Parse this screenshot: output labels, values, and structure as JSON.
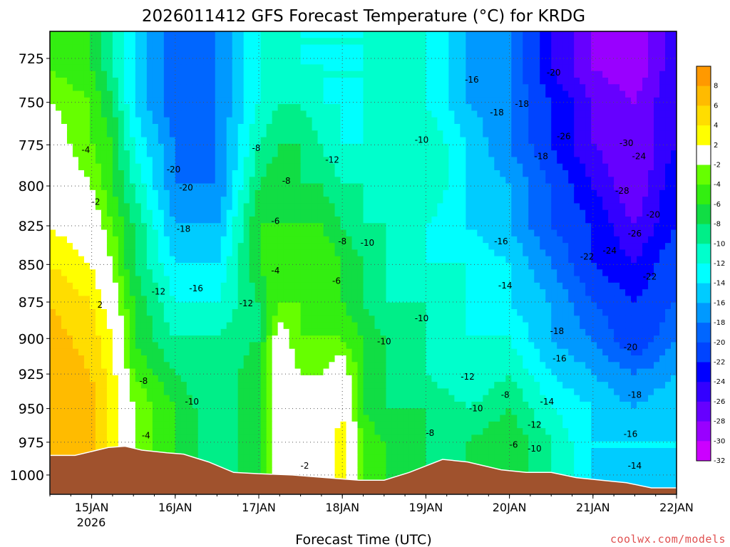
{
  "chart_data": {
    "type": "heatmap",
    "title": "2026011412 GFS Forecast Temperature (°C) for KRDG",
    "xlabel": "Forecast Time (UTC)",
    "ylabel": "",
    "x_ticks": [
      "15JAN",
      "16JAN",
      "17JAN",
      "18JAN",
      "19JAN",
      "20JAN",
      "21JAN",
      "22JAN"
    ],
    "x_year_label": "2026",
    "x_range_days": [
      14.5,
      22.0
    ],
    "y_ticks": [
      725,
      750,
      775,
      800,
      825,
      850,
      875,
      900,
      925,
      950,
      975,
      1000
    ],
    "y_range_hpa": [
      1015,
      710
    ],
    "y_scale": "log",
    "colorbar_levels": [
      8,
      6,
      4,
      2,
      -2,
      -4,
      -6,
      -8,
      -10,
      -12,
      -14,
      -16,
      -18,
      -20,
      -22,
      -24,
      -26,
      -28,
      -30,
      -32
    ],
    "colorbar_colors": [
      "#ff9900",
      "#ffbb00",
      "#ffdd00",
      "#ffff00",
      "#ffffff",
      "#66ff00",
      "#33ee11",
      "#11dd44",
      "#00ee88",
      "#00ffcc",
      "#00ffff",
      "#00ccff",
      "#0099ff",
      "#0066ff",
      "#0044ff",
      "#0000ff",
      "#3300ff",
      "#6600ff",
      "#9900ff",
      "#cc00ff"
    ],
    "terrain_color": "#a0522d",
    "surface_pressure": [
      [
        14.5,
        985
      ],
      [
        14.8,
        985
      ],
      [
        15.0,
        982
      ],
      [
        15.2,
        979
      ],
      [
        15.4,
        978
      ],
      [
        15.6,
        981
      ],
      [
        15.9,
        983
      ],
      [
        16.1,
        984
      ],
      [
        16.4,
        990
      ],
      [
        16.7,
        998
      ],
      [
        17.0,
        999
      ],
      [
        17.4,
        1000
      ],
      [
        17.8,
        1002
      ],
      [
        18.2,
        1004
      ],
      [
        18.5,
        1004
      ],
      [
        18.8,
        998
      ],
      [
        19.2,
        988
      ],
      [
        19.5,
        990
      ],
      [
        19.9,
        996
      ],
      [
        20.2,
        998
      ],
      [
        20.5,
        998
      ],
      [
        20.8,
        1002
      ],
      [
        21.1,
        1004
      ],
      [
        21.4,
        1006
      ],
      [
        21.7,
        1010
      ],
      [
        22.0,
        1010
      ]
    ],
    "temperature_field": {
      "pressures": [
        710,
        730,
        750,
        775,
        800,
        825,
        850,
        875,
        900,
        925,
        950,
        975,
        1000,
        1015
      ],
      "times": [
        14.5,
        15.0,
        15.25,
        15.5,
        16.0,
        16.5,
        17.0,
        17.25,
        17.5,
        17.75,
        18.0,
        18.25,
        18.5,
        19.0,
        19.5,
        20.0,
        20.5,
        21.0,
        21.5,
        22.0
      ],
      "values": [
        [
          -4,
          -6,
          -10,
          -14,
          -20,
          -18,
          -12,
          -10,
          -12,
          -12,
          -12,
          -12,
          -10,
          -12,
          -16,
          -18,
          -24,
          -28,
          -30,
          -24
        ],
        [
          -4,
          -6,
          -10,
          -14,
          -20,
          -18,
          -12,
          -10,
          -12,
          -12,
          -12,
          -12,
          -10,
          -12,
          -16,
          -18,
          -24,
          -28,
          -30,
          -24
        ],
        [
          -2,
          -4,
          -8,
          -14,
          -20,
          -18,
          -12,
          -10,
          -10,
          -12,
          -12,
          -12,
          -12,
          -12,
          -16,
          -18,
          -22,
          -26,
          -28,
          -24
        ],
        [
          0,
          -4,
          -6,
          -12,
          -18,
          -18,
          -10,
          -8,
          -8,
          -10,
          -12,
          -12,
          -10,
          -10,
          -14,
          -18,
          -22,
          -26,
          -28,
          -24
        ],
        [
          1,
          -2,
          -6,
          -10,
          -18,
          -18,
          -8,
          -6,
          -8,
          -8,
          -10,
          -10,
          -10,
          -10,
          -14,
          -16,
          -20,
          -24,
          -28,
          -22
        ],
        [
          2,
          0,
          -4,
          -8,
          -16,
          -16,
          -6,
          -6,
          -6,
          -6,
          -8,
          -10,
          -10,
          -12,
          -14,
          -16,
          -20,
          -22,
          -26,
          -22
        ],
        [
          4,
          2,
          -2,
          -8,
          -14,
          -14,
          -6,
          -4,
          -4,
          -4,
          -6,
          -8,
          -10,
          -12,
          -12,
          -14,
          -18,
          -22,
          -24,
          -20
        ],
        [
          6,
          4,
          0,
          -6,
          -12,
          -12,
          -8,
          -4,
          -4,
          -4,
          -6,
          -8,
          -10,
          -10,
          -12,
          -14,
          -16,
          -20,
          -22,
          -20
        ],
        [
          7,
          5,
          2,
          -6,
          -10,
          -10,
          -8,
          0,
          -4,
          -4,
          -4,
          -6,
          -8,
          -10,
          -12,
          -12,
          -16,
          -18,
          -22,
          -18
        ],
        [
          8,
          6,
          3,
          -4,
          -8,
          -10,
          -6,
          0,
          -2,
          -2,
          0,
          -6,
          -8,
          -10,
          -12,
          -10,
          -14,
          -16,
          -18,
          -16
        ],
        [
          8,
          7,
          3,
          -2,
          -6,
          -10,
          -6,
          0,
          -2,
          0,
          2,
          -6,
          -8,
          -8,
          -10,
          -8,
          -12,
          -14,
          -16,
          -14
        ],
        [
          8,
          7,
          3,
          -2,
          -6,
          -10,
          -6,
          0,
          0,
          0,
          3,
          -4,
          -6,
          -8,
          -8,
          -6,
          -10,
          -14,
          -14,
          -14
        ],
        [
          8,
          7,
          3,
          -2,
          -6,
          -10,
          -6,
          0,
          0,
          0,
          3,
          -4,
          -6,
          -8,
          -8,
          -6,
          -10,
          -14,
          -14,
          -14
        ],
        [
          8,
          7,
          3,
          -2,
          -6,
          -10,
          -6,
          0,
          0,
          0,
          3,
          -4,
          -6,
          -8,
          -8,
          -6,
          -10,
          -14,
          -14,
          -14
        ]
      ]
    },
    "contour_labels": [
      {
        "t": 14.93,
        "p": 778,
        "text": "-4"
      },
      {
        "t": 15.05,
        "p": 810,
        "text": "-2"
      },
      {
        "t": 15.1,
        "p": 877,
        "text": "2"
      },
      {
        "t": 15.62,
        "p": 930,
        "text": "-8"
      },
      {
        "t": 15.65,
        "p": 970,
        "text": "-4"
      },
      {
        "t": 15.8,
        "p": 868,
        "text": "-12"
      },
      {
        "t": 15.98,
        "p": 790,
        "text": "-20"
      },
      {
        "t": 16.13,
        "p": 801,
        "text": "-20"
      },
      {
        "t": 16.1,
        "p": 827,
        "text": "-18"
      },
      {
        "t": 16.25,
        "p": 866,
        "text": "-16"
      },
      {
        "t": 16.2,
        "p": 945,
        "text": "-10"
      },
      {
        "t": 16.85,
        "p": 876,
        "text": "-12"
      },
      {
        "t": 16.97,
        "p": 777,
        "text": "-8"
      },
      {
        "t": 17.2,
        "p": 822,
        "text": "-6"
      },
      {
        "t": 17.2,
        "p": 854,
        "text": "-4"
      },
      {
        "t": 17.33,
        "p": 797,
        "text": "-8"
      },
      {
        "t": 17.88,
        "p": 784,
        "text": "-12"
      },
      {
        "t": 18.0,
        "p": 835,
        "text": "-8"
      },
      {
        "t": 18.3,
        "p": 836,
        "text": "-10"
      },
      {
        "t": 17.93,
        "p": 861,
        "text": "-6"
      },
      {
        "t": 18.5,
        "p": 902,
        "text": "-10"
      },
      {
        "t": 18.95,
        "p": 886,
        "text": "-10"
      },
      {
        "t": 18.95,
        "p": 772,
        "text": "-10"
      },
      {
        "t": 19.05,
        "p": 968,
        "text": "-8"
      },
      {
        "t": 19.5,
        "p": 927,
        "text": "-12"
      },
      {
        "t": 19.6,
        "p": 950,
        "text": "-10"
      },
      {
        "t": 19.95,
        "p": 940,
        "text": "-8"
      },
      {
        "t": 20.05,
        "p": 977,
        "text": "-6"
      },
      {
        "t": 19.55,
        "p": 737,
        "text": "-16"
      },
      {
        "t": 19.85,
        "p": 756,
        "text": "-18"
      },
      {
        "t": 20.15,
        "p": 751,
        "text": "-18"
      },
      {
        "t": 19.9,
        "p": 835,
        "text": "-16"
      },
      {
        "t": 19.95,
        "p": 864,
        "text": "-14"
      },
      {
        "t": 20.38,
        "p": 782,
        "text": "-18"
      },
      {
        "t": 20.53,
        "p": 733,
        "text": "-20"
      },
      {
        "t": 20.65,
        "p": 770,
        "text": "-26"
      },
      {
        "t": 20.57,
        "p": 895,
        "text": "-18"
      },
      {
        "t": 20.6,
        "p": 914,
        "text": "-16"
      },
      {
        "t": 20.45,
        "p": 945,
        "text": "-14"
      },
      {
        "t": 20.3,
        "p": 962,
        "text": "-12"
      },
      {
        "t": 20.3,
        "p": 980,
        "text": "-10"
      },
      {
        "t": 20.93,
        "p": 845,
        "text": "-22"
      },
      {
        "t": 21.2,
        "p": 841,
        "text": "-24"
      },
      {
        "t": 21.4,
        "p": 774,
        "text": "-30"
      },
      {
        "t": 21.55,
        "p": 782,
        "text": "-24"
      },
      {
        "t": 21.35,
        "p": 803,
        "text": "-28"
      },
      {
        "t": 21.5,
        "p": 830,
        "text": "-26"
      },
      {
        "t": 21.72,
        "p": 818,
        "text": "-20"
      },
      {
        "t": 21.68,
        "p": 858,
        "text": "-22"
      },
      {
        "t": 21.45,
        "p": 906,
        "text": "-20"
      },
      {
        "t": 21.5,
        "p": 940,
        "text": "-18"
      },
      {
        "t": 21.45,
        "p": 969,
        "text": "-16"
      },
      {
        "t": 21.5,
        "p": 993,
        "text": "-14"
      },
      {
        "t": 17.55,
        "p": 993,
        "text": "-2"
      }
    ]
  },
  "watermark": "coolwx.com/models"
}
